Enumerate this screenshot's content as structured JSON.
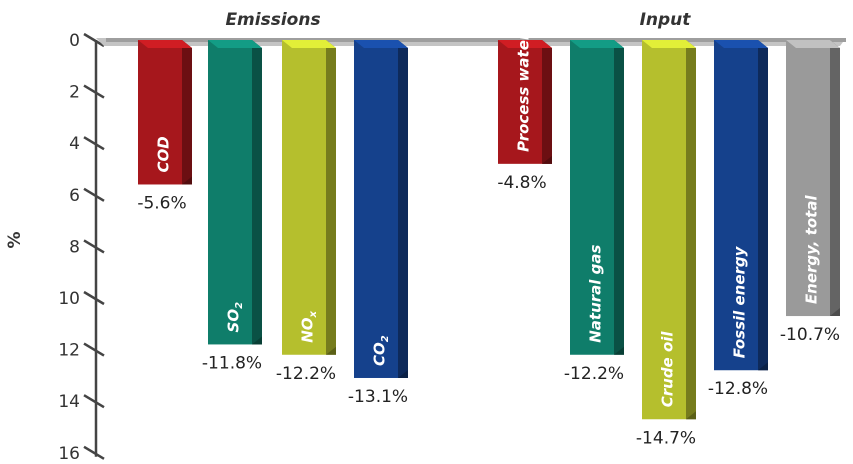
{
  "chart_data": {
    "type": "bar",
    "ylabel": "%",
    "ylim": [
      0,
      16
    ],
    "yticks": [
      "0",
      "2",
      "4",
      "6",
      "8",
      "10",
      "12",
      "14",
      "16"
    ],
    "groups": [
      {
        "title": "Emissions",
        "bars": [
          {
            "label": "COD",
            "sub": "",
            "value": 5.6,
            "value_label": "-5.6%",
            "color": "#a6171c"
          },
          {
            "label": "SO",
            "sub": "2",
            "value": 11.8,
            "value_label": "-11.8%",
            "color": "#0f7d6a"
          },
          {
            "label": "NO",
            "sub": "x",
            "value": 12.2,
            "value_label": "-12.2%",
            "color": "#b5bf2d"
          },
          {
            "label": "CO",
            "sub": "2",
            "value": 13.1,
            "value_label": "-13.1%",
            "color": "#15418c"
          }
        ]
      },
      {
        "title": "Input",
        "bars": [
          {
            "label": "Process water",
            "sub": "",
            "value": 4.8,
            "value_label": "-4.8%",
            "color": "#a6171c"
          },
          {
            "label": "Natural gas",
            "sub": "",
            "value": 12.2,
            "value_label": "-12.2%",
            "color": "#0f7d6a"
          },
          {
            "label": "Crude oil",
            "sub": "",
            "value": 14.7,
            "value_label": "-14.7%",
            "color": "#b5bf2d"
          },
          {
            "label": "Fossil energy",
            "sub": "",
            "value": 12.8,
            "value_label": "-12.8%",
            "color": "#15418c"
          },
          {
            "label": "Energy, total",
            "sub": "",
            "value": 10.7,
            "value_label": "-10.7%",
            "color": "#9a9a9a"
          }
        ]
      }
    ]
  }
}
